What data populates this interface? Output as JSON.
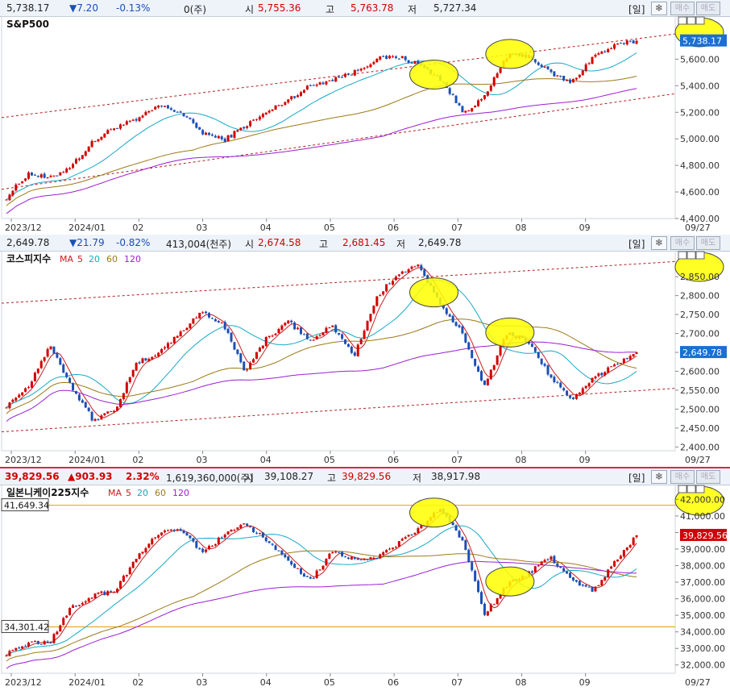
{
  "colors": {
    "up": "#d20000",
    "down": "#1b4fb5",
    "ma5": "#c81e1e",
    "ma20": "#17a9c7",
    "ma60": "#9c7a1a",
    "ma120": "#9b1fd1",
    "channel": "#b02020",
    "highlight": "#ffff00",
    "hline": "#e0a000"
  },
  "toolbar": {
    "period": "[일]",
    "settings_icon": "gear-icon",
    "buy": "매수",
    "sell": "매도"
  },
  "panels": [
    {
      "id": "sp500",
      "header": {
        "price": "5,738.17",
        "change": "▼7.20",
        "change_pct": "-0.13%",
        "volume": "0(주)",
        "open_label": "시",
        "open": "5,755.36",
        "high_label": "고",
        "high": "5,763.78",
        "low_label": "저",
        "low": "5,727.34",
        "change_color": "#1b4fb5"
      },
      "title": "S&P500",
      "legend": [],
      "current_label": "5,738.17",
      "hline_labels": [],
      "x_labels": [
        "2023/12",
        "2024/01",
        "02",
        "03",
        "04",
        "05",
        "06",
        "07",
        "08",
        "09"
      ],
      "end_date": "09/27",
      "chart_data": {
        "type": "candlestick",
        "x_range": [
          "2023-12",
          "2024-09-27"
        ],
        "ylim": [
          4400,
          5900
        ],
        "y_ticks": [
          4400,
          4600,
          4800,
          5000,
          5200,
          5400,
          5600
        ],
        "y_tick_labels": [
          "4,400.00",
          "4,600.00",
          "4,800.00",
          "5,000.00",
          "5,200.00",
          "5,400.00",
          "5,600.00"
        ],
        "last": 5738.17,
        "close_anchors": [
          4560,
          4740,
          4700,
          4800,
          4980,
          5090,
          5140,
          5250,
          5200,
          5050,
          4990,
          5100,
          5200,
          5300,
          5400,
          5450,
          5500,
          5600,
          5620,
          5560,
          5450,
          5200,
          5310,
          5620,
          5630,
          5500,
          5420,
          5620,
          5700,
          5738
        ],
        "ma": [
          {
            "name": "MA 20",
            "window": 20
          },
          {
            "name": "MA 60",
            "window": 60
          },
          {
            "name": "MA 120",
            "window": 120
          }
        ],
        "channel": [
          {
            "y": [
              5160,
              5790
            ]
          },
          {
            "y": [
              4620,
              5340
            ]
          }
        ],
        "hlines": [],
        "ellipses": [
          0.68,
          0.8,
          0.95
        ]
      }
    },
    {
      "id": "kospi",
      "header": {
        "price": "2,649.78",
        "change": "▼21.79",
        "change_pct": "-0.82%",
        "volume": "413,004(천주)",
        "open_label": "시",
        "open": "2,674.58",
        "high_label": "고",
        "high": "2,681.45",
        "low_label": "저",
        "low": "2,649.78",
        "change_color": "#1b4fb5"
      },
      "title": "코스피지수",
      "legend": [
        "MA",
        "5",
        "20",
        "60",
        "120"
      ],
      "current_label": "2,649.78",
      "hline_labels": [],
      "x_labels": [
        "2023/12",
        "2024/01",
        "02",
        "03",
        "04",
        "05",
        "06",
        "07",
        "08",
        "09"
      ],
      "end_date": "09/27",
      "chart_data": {
        "type": "candlestick",
        "x_range": [
          "2023-12",
          "2024-09-27"
        ],
        "ylim": [
          2390,
          2910
        ],
        "y_ticks": [
          2400,
          2450,
          2500,
          2550,
          2600,
          2650,
          2700,
          2750,
          2800,
          2850
        ],
        "y_tick_labels": [
          "2,400.00",
          "2,450.00",
          "2,500.00",
          "2,550.00",
          "2,600.00",
          "2,650.00",
          "2,700.00",
          "2,750.00",
          "2,800.00",
          "2,850.00"
        ],
        "last": 2649.78,
        "close_anchors": [
          2510,
          2560,
          2670,
          2560,
          2470,
          2500,
          2620,
          2650,
          2700,
          2760,
          2720,
          2600,
          2690,
          2730,
          2680,
          2720,
          2640,
          2790,
          2860,
          2880,
          2770,
          2700,
          2560,
          2700,
          2680,
          2590,
          2520,
          2580,
          2620,
          2650
        ],
        "ma": [
          {
            "name": "MA 5",
            "window": 5
          },
          {
            "name": "MA 20",
            "window": 20
          },
          {
            "name": "MA 60",
            "window": 60
          },
          {
            "name": "MA 120",
            "window": 120
          }
        ],
        "channel": [
          {
            "y": [
              2780,
              2890
            ]
          },
          {
            "y": [
              2440,
              2555
            ]
          }
        ],
        "hlines": [],
        "ellipses": [
          0.68,
          0.8,
          0.95
        ]
      }
    },
    {
      "id": "nikkei",
      "header": {
        "price": "39,829.56",
        "change": "▲903.93",
        "change_pct": "2.32%",
        "volume": "1,619,360,000(주)",
        "open_label": "시",
        "open": "39,108.27",
        "high_label": "고",
        "high": "39,829.56",
        "low_label": "저",
        "low": "38,917.98",
        "change_color": "#d20000"
      },
      "title": "일본니케이225지수",
      "legend": [
        "MA",
        "5",
        "20",
        "60",
        "120"
      ],
      "current_label": "39,829.56",
      "hline_labels": [
        "41,649.34",
        "34,301.42"
      ],
      "x_labels": [
        "2023/12",
        "2024/01",
        "02",
        "03",
        "04",
        "05",
        "06",
        "07",
        "08",
        "09"
      ],
      "end_date": "09/27",
      "chart_data": {
        "type": "candlestick",
        "x_range": [
          "2023-12",
          "2024-09-27"
        ],
        "ylim": [
          31500,
          42700
        ],
        "y_ticks": [
          32000,
          33000,
          34000,
          35000,
          36000,
          37000,
          38000,
          39000,
          40000,
          41000,
          42000
        ],
        "y_tick_labels": [
          "32,000.00",
          "33,000.00",
          "34,000.00",
          "35,000.00",
          "36,000.00",
          "37,000.00",
          "38,000.00",
          "39,000.00",
          "40,000.00",
          "41,000.00",
          "42,000.00"
        ],
        "last": 39829.56,
        "close_anchors": [
          32700,
          33300,
          33400,
          35500,
          36200,
          36500,
          38500,
          39900,
          40200,
          38800,
          39800,
          40500,
          39500,
          38300,
          37100,
          38900,
          38400,
          38500,
          39300,
          40200,
          41500,
          39500,
          35000,
          36800,
          37500,
          38500,
          37200,
          36500,
          38200,
          39830
        ],
        "ma": [
          {
            "name": "MA 5",
            "window": 5
          },
          {
            "name": "MA 20",
            "window": 20
          },
          {
            "name": "MA 60",
            "window": 60
          },
          {
            "name": "MA 120",
            "window": 120
          }
        ],
        "channel": [],
        "hlines": [
          41649.34,
          34301.42
        ],
        "ellipses": [
          0.68,
          0.8,
          0.95
        ]
      }
    }
  ]
}
